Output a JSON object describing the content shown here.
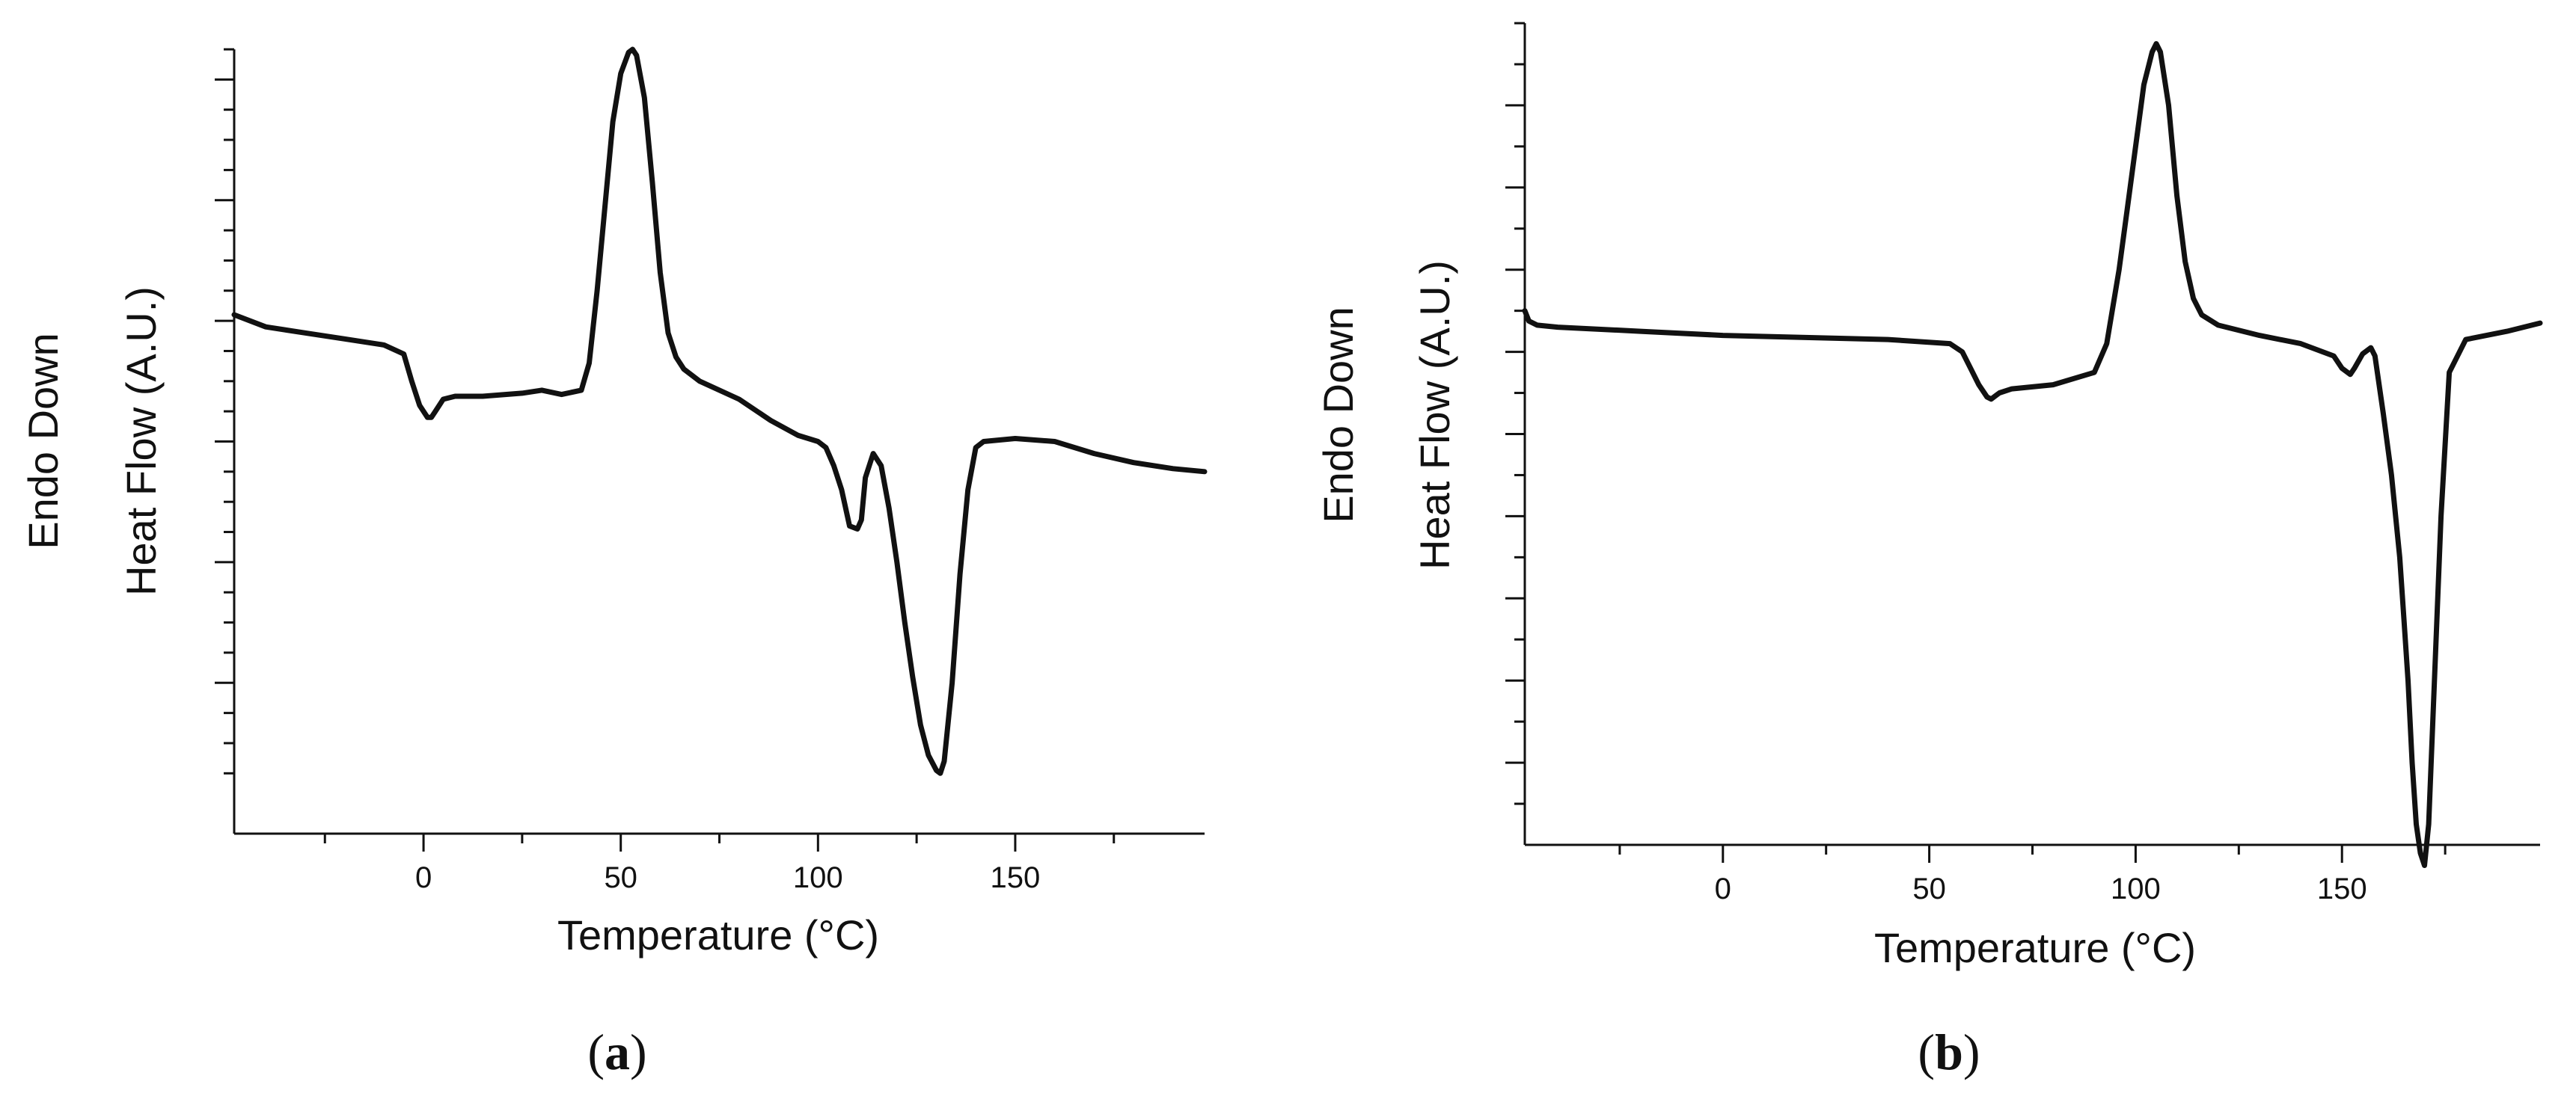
{
  "chart_data": [
    {
      "type": "line",
      "panel_label": "(a)",
      "panel_letter": "a",
      "xlabel": "Temperature (°C)",
      "ylabel": "Heat Flow (A.U.)",
      "ylabel2": "Endo Down",
      "xlim": [
        -48,
        198
      ],
      "ylim": [
        -6.5,
        6.5
      ],
      "xticks": [
        0,
        50,
        100,
        150
      ],
      "xminor": [
        -25,
        25,
        75,
        125,
        175
      ],
      "yticks": [
        -4,
        -2,
        0,
        2,
        4,
        6
      ],
      "yminor": [
        -5.5,
        -5,
        -4.5,
        -3.5,
        -3,
        -2.5,
        -1.5,
        -1,
        -0.5,
        0.5,
        1,
        1.5,
        2.5,
        3,
        3.5,
        4.5,
        5,
        5.5,
        6.5
      ],
      "show_ytick_labels": false,
      "line_color": "#111111",
      "series": [
        {
          "x": [
            -48,
            -40,
            -30,
            -20,
            -10,
            -5,
            -3,
            -1,
            1,
            2,
            3,
            5,
            8,
            15,
            25,
            30,
            35,
            40,
            42,
            44,
            46,
            48,
            50,
            52,
            53,
            54,
            56,
            58,
            60,
            62,
            64,
            66,
            70,
            80,
            88,
            95,
            100,
            102,
            104,
            106,
            108,
            110,
            111,
            112,
            114,
            116,
            118,
            120,
            122,
            124,
            126,
            128,
            130,
            131,
            132,
            134,
            136,
            138,
            140,
            142,
            150,
            160,
            170,
            180,
            190,
            198
          ],
          "y": [
            2.1,
            1.9,
            1.8,
            1.7,
            1.6,
            1.45,
            1.0,
            0.6,
            0.4,
            0.4,
            0.5,
            0.7,
            0.75,
            0.75,
            0.8,
            0.85,
            0.78,
            0.85,
            1.3,
            2.5,
            3.9,
            5.3,
            6.1,
            6.45,
            6.5,
            6.4,
            5.7,
            4.3,
            2.8,
            1.8,
            1.4,
            1.2,
            1.0,
            0.7,
            0.35,
            0.1,
            0.0,
            -0.1,
            -0.4,
            -0.8,
            -1.4,
            -1.45,
            -1.3,
            -0.6,
            -0.2,
            -0.4,
            -1.1,
            -2.0,
            -3.0,
            -3.9,
            -4.7,
            -5.2,
            -5.45,
            -5.5,
            -5.3,
            -4.0,
            -2.2,
            -0.8,
            -0.1,
            0.0,
            0.05,
            0.0,
            -0.2,
            -0.35,
            -0.45,
            -0.5
          ]
        }
      ]
    },
    {
      "type": "line",
      "panel_label": "(b)",
      "panel_letter": "b",
      "xlabel": "Temperature (°C)",
      "ylabel": "Heat Flow (A.U.)",
      "ylabel2": "Endo Down",
      "xlim": [
        -48,
        198
      ],
      "ylim": [
        -10,
        10
      ],
      "xticks": [
        0,
        50,
        100,
        150
      ],
      "xminor": [
        -25,
        25,
        75,
        125,
        175
      ],
      "yticks": [
        -8,
        -6,
        -4,
        -2,
        0,
        2,
        4,
        6,
        8
      ],
      "yminor": [
        -9,
        -7,
        -5,
        -3,
        -1,
        1,
        3,
        5,
        7,
        9,
        10
      ],
      "show_ytick_labels": false,
      "line_color": "#111111",
      "series": [
        {
          "x": [
            -48,
            -47,
            -45,
            -40,
            -20,
            0,
            20,
            40,
            55,
            58,
            60,
            62,
            64,
            65,
            67,
            70,
            80,
            90,
            93,
            96,
            98,
            100,
            102,
            104,
            105,
            106,
            108,
            110,
            112,
            114,
            116,
            120,
            130,
            140,
            148,
            150,
            152,
            153,
            155,
            157,
            158,
            160,
            162,
            164,
            165,
            166,
            167,
            168,
            169,
            170,
            171,
            172,
            174,
            176,
            180,
            190,
            198
          ],
          "y": [
            3.0,
            2.75,
            2.65,
            2.6,
            2.5,
            2.4,
            2.35,
            2.3,
            2.2,
            2.0,
            1.6,
            1.2,
            0.9,
            0.85,
            1.0,
            1.1,
            1.2,
            1.5,
            2.2,
            4.0,
            5.5,
            7.0,
            8.5,
            9.3,
            9.5,
            9.3,
            8.0,
            5.8,
            4.2,
            3.3,
            2.9,
            2.65,
            2.4,
            2.2,
            1.9,
            1.6,
            1.45,
            1.6,
            1.95,
            2.1,
            1.9,
            0.5,
            -1.0,
            -3.0,
            -4.5,
            -6.0,
            -8.0,
            -9.5,
            -10.2,
            -10.5,
            -9.5,
            -7.0,
            -2.0,
            1.5,
            2.3,
            2.5,
            2.7
          ]
        }
      ]
    }
  ]
}
